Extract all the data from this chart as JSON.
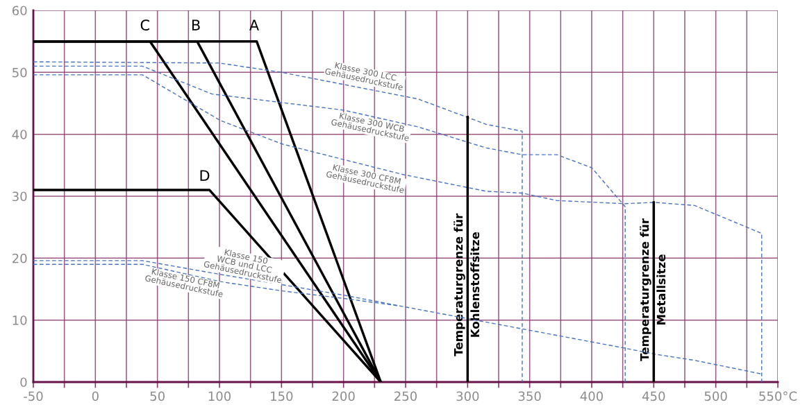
{
  "chart_data": {
    "type": "line",
    "xlim": [
      -50,
      550
    ],
    "ylim": [
      0,
      60
    ],
    "xticks": [
      -50,
      {
        "value": -25,
        "label": null
      },
      0,
      {
        "value": 25,
        "label": null
      },
      50,
      {
        "value": 75,
        "label": null
      },
      100,
      {
        "value": 125,
        "label": null
      },
      150,
      {
        "value": 175,
        "label": null
      },
      200,
      {
        "value": 225,
        "label": null
      },
      250,
      {
        "value": 275,
        "label": null
      },
      300,
      {
        "value": 325,
        "label": null
      },
      350,
      {
        "value": 375,
        "label": null
      },
      400,
      {
        "value": 425,
        "label": null
      },
      450,
      {
        "value": 475,
        "label": null
      },
      500,
      {
        "value": 525,
        "label": null
      },
      {
        "value": 550,
        "label": "550°C"
      }
    ],
    "yticks": [
      0,
      10,
      20,
      30,
      40,
      50,
      60
    ],
    "grid": true,
    "series": [
      {
        "name": "A",
        "color": "#000000",
        "line_style": "solid",
        "x": [
          -50,
          130,
          230
        ],
        "values": [
          55,
          55,
          0
        ]
      },
      {
        "name": "B",
        "color": "#000000",
        "line_style": "solid",
        "x": [
          -50,
          82,
          230
        ],
        "values": [
          55,
          55,
          0
        ]
      },
      {
        "name": "C",
        "color": "#000000",
        "line_style": "solid",
        "x": [
          -50,
          44,
          230
        ],
        "values": [
          55,
          55,
          0
        ]
      },
      {
        "name": "D",
        "color": "#000000",
        "line_style": "solid",
        "x": [
          -50,
          92,
          230
        ],
        "values": [
          31,
          31,
          0
        ]
      },
      {
        "name": "Klasse 300 LCC\nGehäusedruckstufe",
        "color": "#4472c4",
        "line_style": "dashed",
        "x": [
          -50,
          100,
          150,
          260,
          315,
          344,
          344
        ],
        "values": [
          51.7,
          51.5,
          50,
          45.7,
          41.6,
          40.5,
          0
        ]
      },
      {
        "name": "Klasse 300 WCB\nGehäusedruckstufe",
        "color": "#4472c4",
        "line_style": "dashed",
        "x": [
          -50,
          38,
          94,
          200,
          260,
          315,
          344,
          372,
          400,
          427,
          427
        ],
        "values": [
          51,
          51,
          46.5,
          43.9,
          41.2,
          37.8,
          36.7,
          36.7,
          34.6,
          28.3,
          0
        ]
      },
      {
        "name": "Klasse 300 CF8M\nGehäusedruckstufe",
        "color": "#4472c4",
        "line_style": "dashed",
        "x": [
          -50,
          38,
          101,
          151,
          248,
          315,
          344,
          372,
          426,
          451,
          483,
          537,
          537
        ],
        "values": [
          49.6,
          49.6,
          42.2,
          38.4,
          33.5,
          30.8,
          30.5,
          29.3,
          28.8,
          29,
          28.5,
          24,
          0
        ]
      },
      {
        "name": "Klasse 150\nWCB und LCC\nGehäusedruckstufe",
        "color": "#4472c4",
        "line_style": "dashed",
        "x": [
          -50,
          38,
          100,
          151,
          201,
          245,
          301,
          426,
          451,
          483,
          537
        ],
        "values": [
          19.6,
          19.6,
          17.4,
          15.7,
          14,
          12.3,
          10.2,
          5.5,
          4.5,
          3.5,
          1.3
        ]
      },
      {
        "name": "Klasse 150 CF8M\nGehäusedruckstufe",
        "color": "#4472c4",
        "line_style": "dashed",
        "x": [
          -50,
          38,
          101,
          151,
          200,
          245
        ],
        "values": [
          19,
          19,
          16.2,
          14.7,
          13.5,
          12.3
        ]
      },
      {
        "name": "Temperaturgrenze für\nKohlenstoffsitze",
        "color": "#000000",
        "line_style": "solid",
        "x": [
          300,
          300
        ],
        "values": [
          0,
          42.8
        ]
      },
      {
        "name": "Temperaturgrenze für\nMetallsitze",
        "color": "#000000",
        "line_style": "solid",
        "x": [
          450,
          450
        ],
        "values": [
          0,
          29
        ]
      }
    ]
  }
}
